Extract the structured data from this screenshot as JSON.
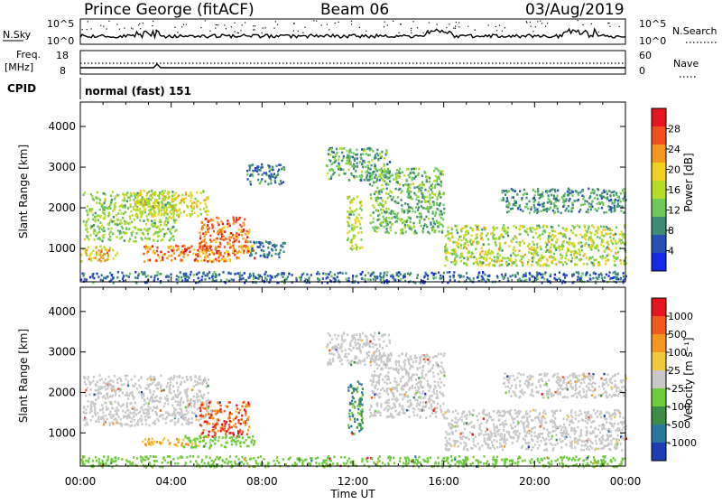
{
  "header": {
    "station": "Prince George (fitACF)",
    "beam": "Beam 06",
    "date": "03/Aug/2019"
  },
  "top_panels": {
    "nsky_label": "N.Sky",
    "nsky_ticks": [
      "10^5",
      "10^0"
    ],
    "nsearch_label": "N.Search",
    "nsearch_ticks": [
      "10^5",
      "10^0"
    ],
    "freq_label_1": "Freq.",
    "freq_label_2": "[MHz]",
    "freq_ticks": [
      "18",
      "8"
    ],
    "nave_label": "Nave",
    "nave_ticks": [
      "60",
      "0"
    ],
    "cpid_label": "CPID",
    "cpid_text": "normal (fast) 151"
  },
  "chart_data": [
    {
      "type": "heatmap",
      "name": "power",
      "ylabel": "Slant Range [km]",
      "xlabel": "Time UT",
      "x_ticks": [
        "00:00",
        "04:00",
        "08:00",
        "12:00",
        "16:00",
        "20:00",
        "00:00"
      ],
      "x_range_hours": [
        0,
        24
      ],
      "y_ticks": [
        1000,
        2000,
        3000,
        4000
      ],
      "ylim": [
        180,
        4600
      ],
      "colorbar_label": "Power [dB]",
      "colorbar_ticks": [
        "4",
        "8",
        "12",
        "16",
        "20",
        "24",
        "28"
      ],
      "colorbar_colors": [
        "#1428e6",
        "#2850b4",
        "#3c8c78",
        "#6ec85a",
        "#b4dc28",
        "#f0d21e",
        "#f5961e",
        "#f0501e",
        "#e6141e"
      ],
      "echo_regions": [
        {
          "t": [
            0.1,
            4.2
          ],
          "r": [
            1200,
            2450
          ],
          "level": [
            10,
            18
          ]
        },
        {
          "t": [
            2.3,
            5.6
          ],
          "r": [
            1800,
            2450
          ],
          "level": [
            14,
            22
          ]
        },
        {
          "t": [
            5.2,
            7.4
          ],
          "r": [
            900,
            1800
          ],
          "level": [
            20,
            30
          ]
        },
        {
          "t": [
            2.7,
            7.7
          ],
          "r": [
            700,
            1100
          ],
          "level": [
            18,
            30
          ]
        },
        {
          "t": [
            0.0,
            1.6
          ],
          "r": [
            700,
            1100
          ],
          "level": [
            14,
            26
          ]
        },
        {
          "t": [
            7.4,
            9.0
          ],
          "r": [
            800,
            1200
          ],
          "level": [
            4,
            10
          ]
        },
        {
          "t": [
            7.3,
            9.0
          ],
          "r": [
            2600,
            3100
          ],
          "level": [
            4,
            12
          ]
        },
        {
          "t": [
            10.8,
            13.6
          ],
          "r": [
            2700,
            3500
          ],
          "level": [
            6,
            16
          ]
        },
        {
          "t": [
            11.7,
            12.4
          ],
          "r": [
            1000,
            2300
          ],
          "level": [
            10,
            20
          ]
        },
        {
          "t": [
            12.7,
            16.0
          ],
          "r": [
            1400,
            3000
          ],
          "level": [
            8,
            16
          ]
        },
        {
          "t": [
            16.0,
            24.0
          ],
          "r": [
            600,
            1600
          ],
          "level": [
            10,
            22
          ]
        },
        {
          "t": [
            18.5,
            24.0
          ],
          "r": [
            1900,
            2500
          ],
          "level": [
            6,
            14
          ]
        },
        {
          "t": [
            0.0,
            24.0
          ],
          "r": [
            180,
            450
          ],
          "level": [
            2,
            12
          ]
        }
      ]
    },
    {
      "type": "heatmap",
      "name": "velocity",
      "ylabel": "Slant Range [km]",
      "xlabel": "Time UT",
      "x_ticks": [
        "00:00",
        "04:00",
        "08:00",
        "12:00",
        "16:00",
        "20:00",
        "00:00"
      ],
      "x_range_hours": [
        0,
        24
      ],
      "y_ticks": [
        1000,
        2000,
        3000,
        4000
      ],
      "ylim": [
        180,
        4600
      ],
      "colorbar_label": "Velocity [m s⁻¹]",
      "colorbar_ticks": [
        "1000",
        "500",
        "100",
        "25",
        "-25",
        "-100",
        "-500",
        "-1000"
      ],
      "colorbar_colors": [
        "#1e3cb4",
        "#2878a0",
        "#3c8c46",
        "#6ecc3c",
        "#c8c8c8",
        "#f0c83c",
        "#f5961e",
        "#f05a1e",
        "#e6141e"
      ],
      "echo_regions": [
        {
          "t": [
            0.1,
            5.6
          ],
          "r": [
            1200,
            2450
          ],
          "v": "ground"
        },
        {
          "t": [
            5.2,
            7.4
          ],
          "r": [
            900,
            1800
          ],
          "v": "neg_large"
        },
        {
          "t": [
            2.7,
            5.2
          ],
          "r": [
            700,
            900
          ],
          "v": "neg_small"
        },
        {
          "t": [
            4.5,
            7.7
          ],
          "r": [
            650,
            950
          ],
          "v": "pos_small"
        },
        {
          "t": [
            10.8,
            13.6
          ],
          "r": [
            2700,
            3500
          ],
          "v": "ground"
        },
        {
          "t": [
            11.7,
            12.4
          ],
          "r": [
            1000,
            2300
          ],
          "v": "pos_med"
        },
        {
          "t": [
            12.7,
            16.0
          ],
          "r": [
            1400,
            3000
          ],
          "v": "ground"
        },
        {
          "t": [
            16.0,
            24.0
          ],
          "r": [
            600,
            1600
          ],
          "v": "ground"
        },
        {
          "t": [
            18.5,
            24.0
          ],
          "r": [
            1900,
            2500
          ],
          "v": "ground"
        },
        {
          "t": [
            0.0,
            24.0
          ],
          "r": [
            180,
            450
          ],
          "v": "pos_small"
        }
      ]
    }
  ]
}
